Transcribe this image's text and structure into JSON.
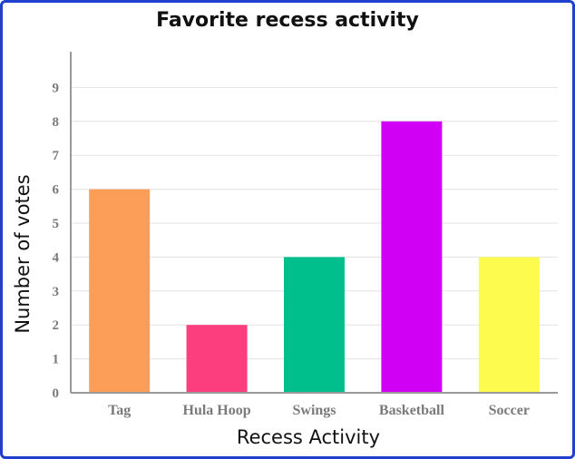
{
  "chart_data": {
    "type": "bar",
    "title": "Favorite recess activity",
    "xlabel": "Recess Activity",
    "ylabel": "Number of votes",
    "categories": [
      "Tag",
      "Hula Hoop",
      "Swings",
      "Basketball",
      "Soccer"
    ],
    "values": [
      6,
      2,
      4,
      8,
      4
    ],
    "colors": [
      "#fd9e58",
      "#fd3e7e",
      "#00bf8c",
      "#d000f4",
      "#fdfb4d"
    ],
    "ylim": [
      0,
      10
    ],
    "yticks": [
      0,
      1,
      2,
      3,
      4,
      5,
      6,
      7,
      8,
      9
    ],
    "grid": true
  }
}
